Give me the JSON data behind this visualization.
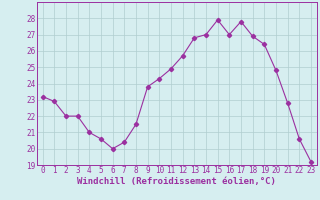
{
  "x": [
    0,
    1,
    2,
    3,
    4,
    5,
    6,
    7,
    8,
    9,
    10,
    11,
    12,
    13,
    14,
    15,
    16,
    17,
    18,
    19,
    20,
    21,
    22,
    23
  ],
  "y": [
    23.2,
    22.9,
    22.0,
    22.0,
    21.0,
    20.6,
    20.0,
    20.4,
    21.5,
    23.8,
    24.3,
    24.9,
    25.7,
    26.8,
    27.0,
    27.9,
    27.0,
    27.8,
    26.9,
    26.4,
    24.8,
    22.8,
    20.6,
    19.2
  ],
  "line_color": "#9b30a0",
  "marker": "D",
  "marker_size": 2.2,
  "bg_color": "#d6eef0",
  "grid_color": "#b0cdd0",
  "xlabel": "Windchill (Refroidissement éolien,°C)",
  "xlabel_fontsize": 6.5,
  "ylim": [
    19,
    29
  ],
  "xlim": [
    -0.5,
    23.5
  ],
  "yticks": [
    19,
    20,
    21,
    22,
    23,
    24,
    25,
    26,
    27,
    28
  ],
  "xticks": [
    0,
    1,
    2,
    3,
    4,
    5,
    6,
    7,
    8,
    9,
    10,
    11,
    12,
    13,
    14,
    15,
    16,
    17,
    18,
    19,
    20,
    21,
    22,
    23
  ],
  "tick_fontsize": 5.5,
  "tick_color": "#9b30a0",
  "spine_color": "#9b30a0"
}
